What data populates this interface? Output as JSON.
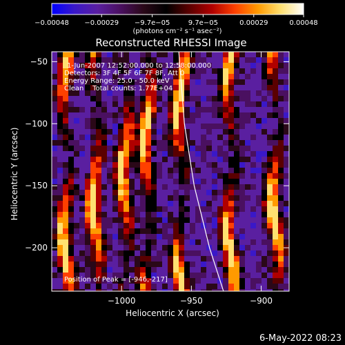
{
  "chart_data": {
    "type": "heatmap",
    "title": "Reconstructed RHESSI Image",
    "xlabel": "Heliocentric X (arcsec)",
    "ylabel": "Heliocentric Y (arcsec)",
    "xlim": [
      -1050,
      -880
    ],
    "ylim": [
      -235,
      -42
    ],
    "x_ticks": [
      {
        "value": -1000,
        "label": "−1000"
      },
      {
        "value": -950,
        "label": "−950"
      },
      {
        "value": -900,
        "label": "−900"
      }
    ],
    "y_ticks": [
      {
        "value": -50,
        "label": "−50"
      },
      {
        "value": -100,
        "label": "−100"
      },
      {
        "value": -150,
        "label": "−150"
      },
      {
        "value": -200,
        "label": "−200"
      }
    ],
    "colorbar": {
      "range": [
        -0.00048,
        0.00048
      ],
      "unit_label": "(photons cm⁻² s⁻¹ asec⁻²)",
      "ticks": [
        {
          "value": -0.00048,
          "label": "−0.00048"
        },
        {
          "value": -0.00029,
          "label": "−0.00029"
        },
        {
          "value": -9.7e-05,
          "label": "−9.7e−05"
        },
        {
          "value": 9.7e-05,
          "label": "9.7e−05"
        },
        {
          "value": 0.00029,
          "label": "0.00029"
        },
        {
          "value": 0.00048,
          "label": "0.00048"
        }
      ],
      "colors": [
        "#0000ff",
        "#3a18c8",
        "#5a1fa0",
        "#4a1060",
        "#2a0818",
        "#000000",
        "#5a0000",
        "#b00000",
        "#ff4000",
        "#ff9a00",
        "#ffe070",
        "#ffffff"
      ]
    },
    "annotations": {
      "time_range": "1-Jun-2007 12:52:00.000 to 12:58:00.000",
      "detectors": "Detectors: 3F 4F 5F 6F 7F 8F, Att 0",
      "energy": "Energy Range: 25.0 - 50.0 keV",
      "clean": "Clean    Total counts: 1.77E+04",
      "peak": "Position of Peak = [-946,-217]"
    },
    "limb_curve": [
      {
        "x": -959,
        "y": -42
      },
      {
        "x": -955,
        "y": -100
      },
      {
        "x": -948,
        "y": -150
      },
      {
        "x": -937,
        "y": -200
      },
      {
        "x": -927,
        "y": -235
      }
    ],
    "peak_position": [
      -946,
      -217
    ]
  },
  "footer": {
    "timestamp": "6-May-2022 08:23"
  }
}
